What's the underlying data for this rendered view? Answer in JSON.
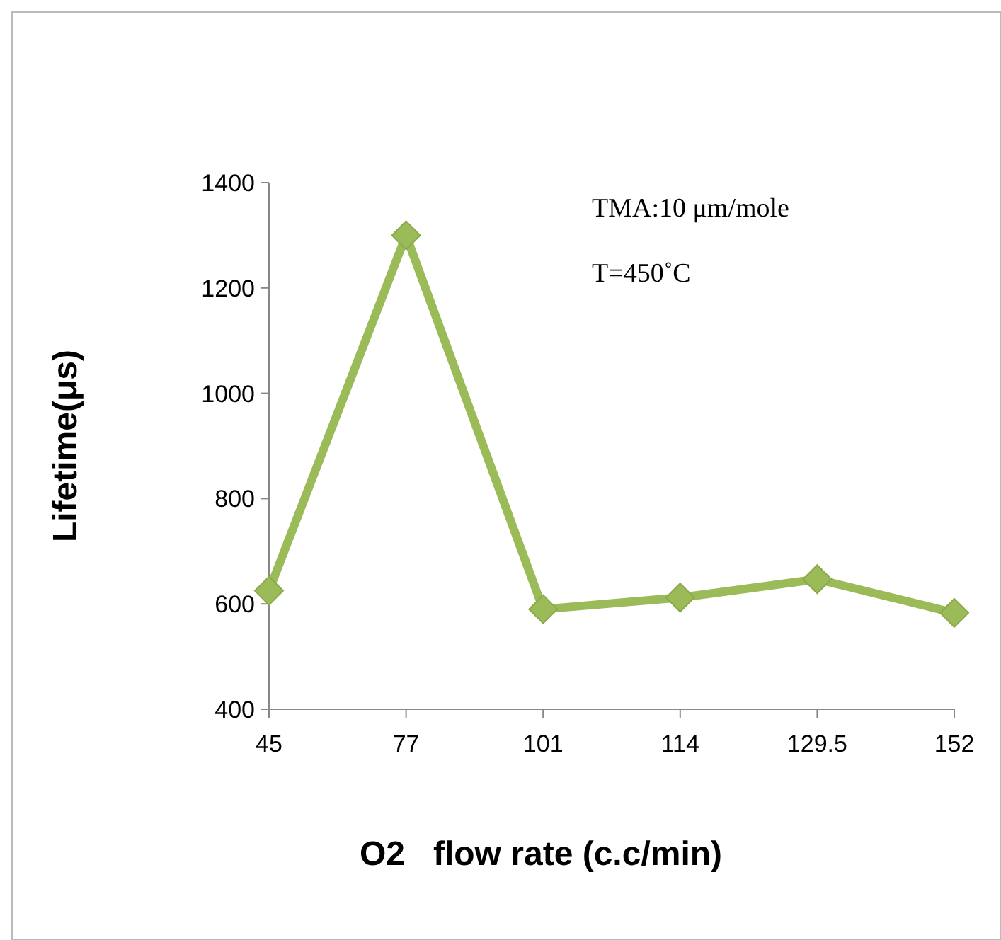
{
  "chart_data": {
    "type": "line",
    "xlabel": "O2   flow rate (c.c/min)",
    "ylabel": "Lifetime(μs)",
    "categories": [
      "45",
      "77",
      "101",
      "114",
      "129.5",
      "152"
    ],
    "series": [
      {
        "color": "#9bbb59",
        "values": [
          625,
          1300,
          590,
          612,
          647,
          583
        ]
      }
    ],
    "ylim": [
      400,
      1400
    ],
    "yticks": [
      400,
      600,
      800,
      1000,
      1200,
      1400
    ],
    "annotations": [
      "TMA:10 μm/mole",
      "T=450˚C"
    ],
    "marker": "diamond",
    "line_style": "solid",
    "grid": false
  }
}
